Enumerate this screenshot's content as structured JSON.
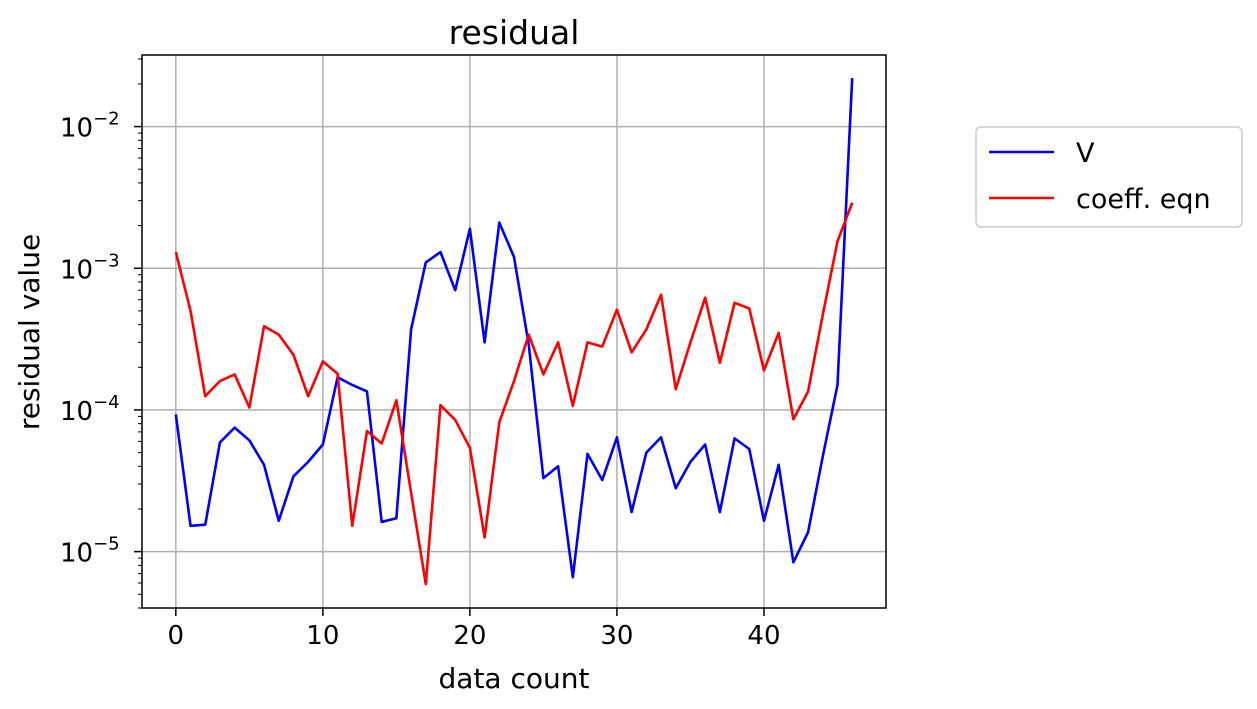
{
  "chart_data": {
    "type": "line",
    "title": "residual",
    "xlabel": "data count",
    "ylabel": "residual value",
    "yscale": "log",
    "xlim": [
      -2.3,
      48.3
    ],
    "ylim": [
      4e-06,
      0.032
    ],
    "xticks": [
      0,
      10,
      20,
      30,
      40
    ],
    "xtick_labels": [
      "0",
      "10",
      "20",
      "30",
      "40"
    ],
    "yticks": [
      1e-05,
      0.0001,
      0.001,
      0.01
    ],
    "ytick_labels": [
      {
        "base": "10",
        "exp": "−5"
      },
      {
        "base": "10",
        "exp": "−4"
      },
      {
        "base": "10",
        "exp": "−3"
      },
      {
        "base": "10",
        "exp": "−2"
      }
    ],
    "grid": true,
    "legend_position": "outside-right",
    "x": [
      0,
      1,
      2,
      3,
      4,
      5,
      6,
      7,
      8,
      9,
      10,
      11,
      12,
      13,
      14,
      15,
      16,
      17,
      18,
      19,
      20,
      21,
      22,
      23,
      24,
      25,
      26,
      27,
      28,
      29,
      30,
      31,
      32,
      33,
      34,
      35,
      36,
      37,
      38,
      39,
      40,
      41,
      42,
      43,
      44,
      45,
      46
    ],
    "series": [
      {
        "name": "V",
        "color": "#0000ff",
        "values": [
          9.3e-05,
          1.52e-05,
          1.55e-05,
          5.9e-05,
          7.5e-05,
          6.1e-05,
          4.1e-05,
          1.65e-05,
          3.4e-05,
          4.3e-05,
          5.7e-05,
          0.00017,
          0.00015,
          0.000135,
          1.62e-05,
          1.72e-05,
          0.00037,
          0.0011,
          0.0013,
          0.0007,
          0.0019,
          0.0003,
          0.0021,
          0.0012,
          0.00029,
          3.3e-05,
          4e-05,
          6.6e-06,
          4.9e-05,
          3.2e-05,
          6.4e-05,
          1.9e-05,
          5e-05,
          6.4e-05,
          2.8e-05,
          4.3e-05,
          5.7e-05,
          1.9e-05,
          6.3e-05,
          5.3e-05,
          1.65e-05,
          4.1e-05,
          8.4e-06,
          1.37e-05,
          4.7e-05,
          0.00015,
          0.022
        ]
      },
      {
        "name": "coeff. eqn",
        "color": "#ff0000",
        "values": [
          0.0013,
          0.0005,
          0.000125,
          0.00016,
          0.000178,
          0.000104,
          0.00039,
          0.00034,
          0.000245,
          0.000125,
          0.00022,
          0.00018,
          1.52e-05,
          7.1e-05,
          5.8e-05,
          0.000117,
          2.6e-05,
          5.9e-06,
          0.000108,
          8.5e-05,
          5.4e-05,
          1.26e-05,
          8.2e-05,
          0.00016,
          0.00034,
          0.000178,
          0.0003,
          0.000107,
          0.0003,
          0.00028,
          0.00051,
          0.000255,
          0.00037,
          0.00065,
          0.00014,
          0.0003,
          0.00062,
          0.000215,
          0.00057,
          0.00052,
          0.00019,
          0.00035,
          8.6e-05,
          0.000135,
          0.00047,
          0.00155,
          0.0029
        ]
      }
    ]
  }
}
